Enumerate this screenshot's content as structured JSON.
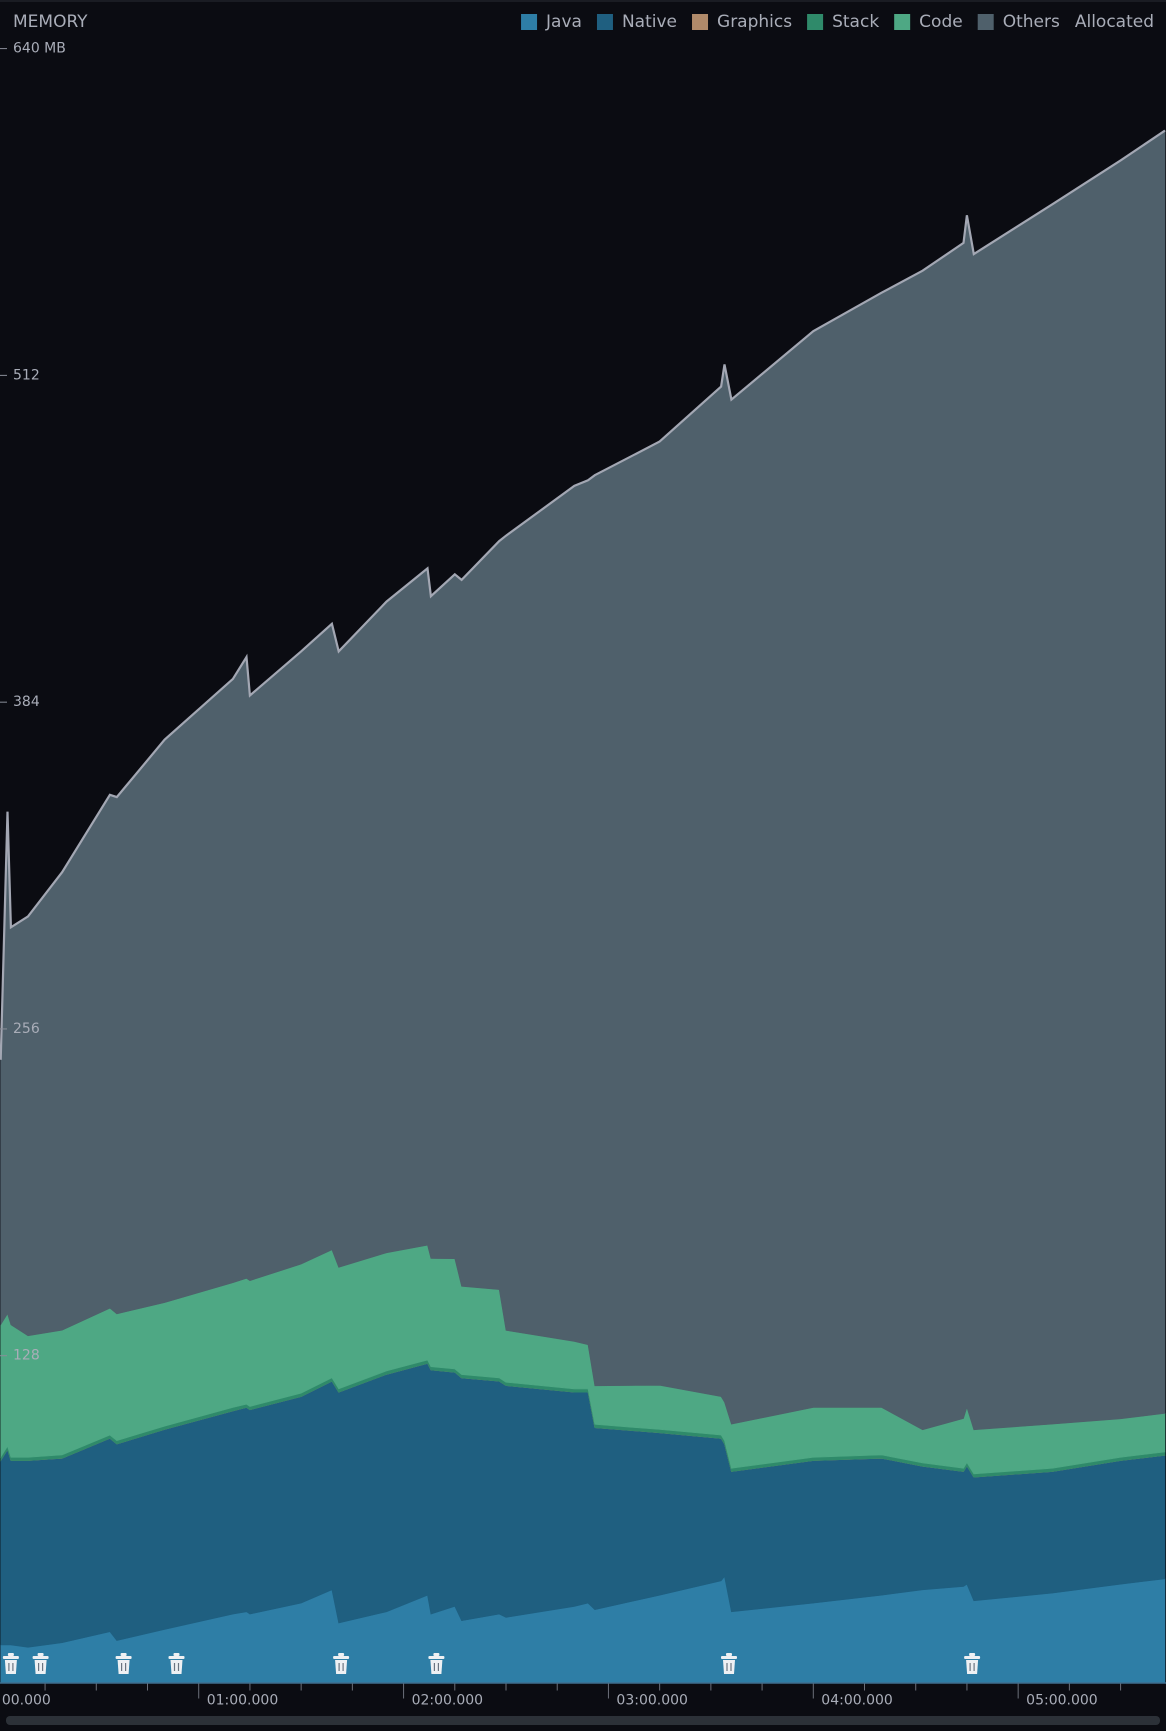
{
  "chart_data": {
    "type": "stacked-area",
    "title": "MEMORY",
    "x": [
      2,
      4,
      5,
      10,
      20,
      34,
      36,
      50,
      70,
      74,
      75,
      90,
      99,
      101,
      115,
      127,
      128,
      135,
      137,
      148,
      150,
      170,
      174,
      176,
      195,
      213,
      214,
      216,
      240,
      260,
      272,
      284,
      285,
      287,
      310,
      330,
      343
    ],
    "series": [
      {
        "name": "Java",
        "color": "#2e7ea6",
        "values": [
          14.7,
          14.7,
          14.7,
          13.8,
          15.6,
          19.9,
          16.4,
          20.8,
          26.8,
          27.7,
          26.8,
          31.1,
          36.3,
          23.3,
          27.7,
          34.2,
          26.8,
          29.8,
          24.2,
          26.8,
          25.5,
          29.8,
          31.1,
          28.5,
          34.2,
          39.8,
          41.5,
          27.7,
          31.1,
          34.2,
          36.3,
          37.6,
          38.5,
          32.0,
          35.0,
          38.5,
          40.6
        ]
      },
      {
        "name": "Native",
        "color": "#1f5f80",
        "values": [
          72.2,
          76.5,
          72.2,
          73.1,
          72.2,
          75.7,
          77.0,
          78.3,
          79.6,
          80.0,
          80.0,
          80.9,
          81.7,
          90.4,
          93.0,
          90.8,
          95.6,
          91.7,
          95.1,
          91.2,
          90.8,
          83.9,
          82.6,
          71.3,
          63.6,
          55.8,
          51.9,
          54.9,
          55.8,
          53.6,
          48.4,
          45.0,
          46.3,
          48.4,
          47.6,
          48.4,
          48.4
        ]
      },
      {
        "name": "Graphics",
        "color": "#b08a6a",
        "values": [
          0,
          0,
          0,
          0,
          0,
          0,
          0,
          0,
          0,
          0,
          0,
          0,
          0,
          0,
          0,
          0,
          0,
          0,
          0,
          0,
          0,
          0,
          0,
          0,
          0,
          0,
          0,
          0,
          0,
          0,
          0,
          0,
          0,
          0,
          0,
          0,
          0
        ]
      },
      {
        "name": "Stack",
        "color": "#2f8a6a",
        "values": [
          1.3,
          1.3,
          1.3,
          1.3,
          1.3,
          1.3,
          1.3,
          1.3,
          1.3,
          1.3,
          1.3,
          1.3,
          1.3,
          1.3,
          1.3,
          1.3,
          1.3,
          1.3,
          1.3,
          1.3,
          1.3,
          1.3,
          1.3,
          1.3,
          1.3,
          1.3,
          1.3,
          1.3,
          1.3,
          1.3,
          1.3,
          1.3,
          1.3,
          1.3,
          1.3,
          1.3,
          1.3
        ]
      },
      {
        "name": "Code",
        "color": "#4ea884",
        "values": [
          51.9,
          51.9,
          51.9,
          47.6,
          48.9,
          49.7,
          49.7,
          48.4,
          48.9,
          49.3,
          49.3,
          50.6,
          50.2,
          47.6,
          46.3,
          45.0,
          42.4,
          43.2,
          34.6,
          34.6,
          20.3,
          18.6,
          17.3,
          15.1,
          17.3,
          15.1,
          15.1,
          17.3,
          19.5,
          18.6,
          13.0,
          19.5,
          21.6,
          17.3,
          17.3,
          15.1,
          15.1
        ]
      },
      {
        "name": "Others",
        "color": "#4f606b",
        "values": [
          103.8,
          196.7,
          155.7,
          164.3,
          179.4,
          201.1,
          202.4,
          220.5,
          236.5,
          243.4,
          229.2,
          240.0,
          245.2,
          241.3,
          255.1,
          265.1,
          259.4,
          268.1,
          276.7,
          293.2,
          311.3,
          335.1,
          338.6,
          356.7,
          369.7,
          395.6,
          406.5,
          401.3,
          421.6,
          436.7,
          454.0,
          460.5,
          467.0,
          460.5,
          477.8,
          492.9,
          502.5
        ]
      }
    ],
    "allocated_label": "Allocated",
    "outline_color": "#a3a7b3",
    "xlim": [
      1.8,
      343.3
    ],
    "xticks": [
      {
        "value": 0,
        "label": "00.000"
      },
      {
        "value": 60,
        "label": "01:00.000"
      },
      {
        "value": 120,
        "label": "02:00.000"
      },
      {
        "value": 180,
        "label": "03:00.000"
      },
      {
        "value": 240,
        "label": "04:00.000"
      },
      {
        "value": 300,
        "label": "05:00.000"
      }
    ],
    "xminorticks": [
      15,
      30,
      45,
      75,
      90,
      105,
      135,
      150,
      165,
      195,
      210,
      225,
      255,
      270,
      285,
      315,
      330
    ],
    "ylim": [
      0,
      640
    ],
    "yticks": [
      128,
      256,
      384,
      512,
      {
        "value": 640,
        "label": "640 MB"
      }
    ],
    "gc_events": [
      5.0,
      13.7,
      38.0,
      53.5,
      101.7,
      129.6,
      215.3,
      286.5
    ]
  }
}
